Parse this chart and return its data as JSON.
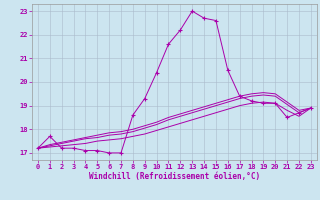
{
  "title": "",
  "xlabel": "Windchill (Refroidissement éolien,°C)",
  "ylabel": "",
  "bg_color": "#cce5f0",
  "line_color": "#aa00aa",
  "grid_color": "#aabbcc",
  "xlim": [
    -0.5,
    23.5
  ],
  "ylim": [
    16.7,
    23.3
  ],
  "yticks": [
    17,
    18,
    19,
    20,
    21,
    22,
    23
  ],
  "xticks": [
    0,
    1,
    2,
    3,
    4,
    5,
    6,
    7,
    8,
    9,
    10,
    11,
    12,
    13,
    14,
    15,
    16,
    17,
    18,
    19,
    20,
    21,
    22,
    23
  ],
  "series": [
    {
      "x": [
        0,
        1,
        2,
        3,
        4,
        5,
        6,
        7,
        8,
        9,
        10,
        11,
        12,
        13,
        14,
        15,
        16,
        17,
        18,
        19,
        20,
        21,
        22,
        23
      ],
      "y": [
        17.2,
        17.7,
        17.2,
        17.2,
        17.1,
        17.1,
        17.0,
        17.0,
        18.6,
        19.3,
        20.4,
        21.6,
        22.2,
        23.0,
        22.7,
        22.6,
        20.5,
        19.4,
        19.2,
        19.1,
        19.1,
        18.5,
        18.7,
        18.9
      ],
      "marker": true
    },
    {
      "x": [
        0,
        1,
        2,
        3,
        4,
        5,
        6,
        7,
        8,
        9,
        10,
        11,
        12,
        13,
        14,
        15,
        16,
        17,
        18,
        19,
        20,
        21,
        22,
        23
      ],
      "y": [
        17.2,
        17.25,
        17.3,
        17.35,
        17.4,
        17.5,
        17.55,
        17.6,
        17.7,
        17.8,
        17.95,
        18.1,
        18.25,
        18.4,
        18.55,
        18.7,
        18.85,
        19.0,
        19.1,
        19.15,
        19.1,
        18.8,
        18.55,
        18.9
      ],
      "marker": false
    },
    {
      "x": [
        0,
        1,
        2,
        3,
        4,
        5,
        6,
        7,
        8,
        9,
        10,
        11,
        12,
        13,
        14,
        15,
        16,
        17,
        18,
        19,
        20,
        21,
        22,
        23
      ],
      "y": [
        17.2,
        17.3,
        17.4,
        17.5,
        17.6,
        17.65,
        17.75,
        17.8,
        17.9,
        18.05,
        18.2,
        18.4,
        18.55,
        18.7,
        18.85,
        19.0,
        19.15,
        19.3,
        19.4,
        19.45,
        19.4,
        19.05,
        18.7,
        18.9
      ],
      "marker": false
    },
    {
      "x": [
        0,
        1,
        2,
        3,
        4,
        5,
        6,
        7,
        8,
        9,
        10,
        11,
        12,
        13,
        14,
        15,
        16,
        17,
        18,
        19,
        20,
        21,
        22,
        23
      ],
      "y": [
        17.2,
        17.35,
        17.45,
        17.55,
        17.65,
        17.75,
        17.85,
        17.9,
        18.0,
        18.15,
        18.3,
        18.5,
        18.65,
        18.8,
        18.95,
        19.1,
        19.25,
        19.4,
        19.5,
        19.55,
        19.5,
        19.15,
        18.8,
        18.9
      ],
      "marker": false
    }
  ]
}
